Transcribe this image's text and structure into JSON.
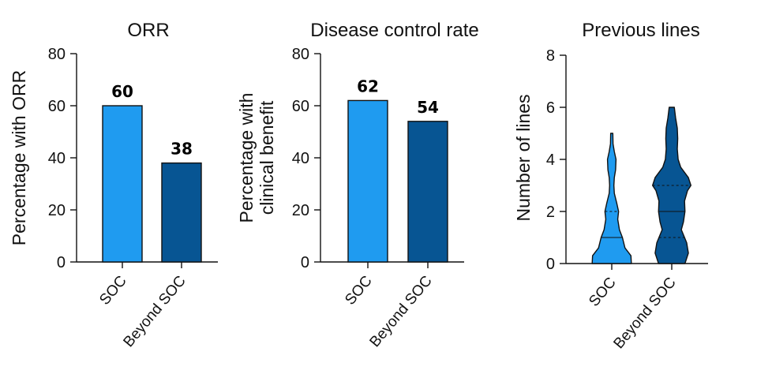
{
  "colors": {
    "soc": "#1f9bf0",
    "beyond": "#075593",
    "stroke": "#111111"
  },
  "chart_data": [
    {
      "type": "bar",
      "title": "ORR",
      "ylabel": "Percentage  with ORR",
      "categories": [
        "SOC",
        "Beyond SOC"
      ],
      "values": [
        60,
        38
      ],
      "data_labels": [
        "60",
        "38"
      ],
      "ylim": [
        0,
        80
      ],
      "yticks": [
        "0",
        "20",
        "40",
        "60",
        "80"
      ],
      "grid": false
    },
    {
      "type": "bar",
      "title": "Disease control rate",
      "ylabel": [
        "Percentage with",
        "clinical benefit"
      ],
      "categories": [
        "SOC",
        "Beyond SOC"
      ],
      "values": [
        62,
        54
      ],
      "data_labels": [
        "62",
        "54"
      ],
      "ylim": [
        0,
        80
      ],
      "yticks": [
        "0",
        "20",
        "40",
        "60",
        "80"
      ],
      "grid": false
    },
    {
      "type": "violin",
      "title": "Previous lines",
      "ylabel": "Number of lines",
      "categories": [
        "SOC",
        "Beyond SOC"
      ],
      "ylim": [
        0,
        8
      ],
      "yticks": [
        "0",
        "2",
        "4",
        "6",
        "8"
      ],
      "grid": false,
      "distributions": [
        {
          "category": "SOC",
          "max": 5,
          "median": 1,
          "q1": 0,
          "q3": 2,
          "profile": [
            [
              0,
              0.92
            ],
            [
              0.3,
              0.9
            ],
            [
              0.6,
              0.62
            ],
            [
              1,
              0.5
            ],
            [
              1.3,
              0.36
            ],
            [
              1.7,
              0.28
            ],
            [
              2,
              0.32
            ],
            [
              2.3,
              0.24
            ],
            [
              2.7,
              0.12
            ],
            [
              3,
              0.1
            ],
            [
              3.3,
              0.12
            ],
            [
              3.6,
              0.18
            ],
            [
              4,
              0.2
            ],
            [
              4.3,
              0.12
            ],
            [
              4.6,
              0.06
            ],
            [
              5,
              0.05
            ]
          ]
        },
        {
          "category": "Beyond SOC",
          "max": 6,
          "median": 2,
          "q1": 1,
          "q3": 3,
          "profile": [
            [
              0,
              0.62
            ],
            [
              0.4,
              0.78
            ],
            [
              0.8,
              0.7
            ],
            [
              1,
              0.6
            ],
            [
              1.3,
              0.45
            ],
            [
              1.6,
              0.55
            ],
            [
              2,
              0.62
            ],
            [
              2.4,
              0.6
            ],
            [
              2.8,
              0.74
            ],
            [
              3,
              0.9
            ],
            [
              3.3,
              0.78
            ],
            [
              3.7,
              0.42
            ],
            [
              4,
              0.3
            ],
            [
              4.4,
              0.26
            ],
            [
              4.8,
              0.28
            ],
            [
              5.2,
              0.26
            ],
            [
              5.6,
              0.18
            ],
            [
              6,
              0.12
            ]
          ]
        }
      ]
    }
  ]
}
